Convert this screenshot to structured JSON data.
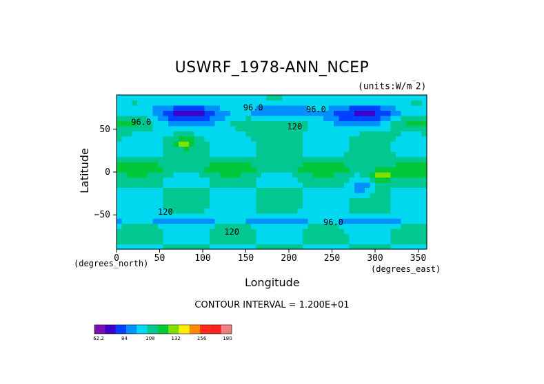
{
  "chart_data": {
    "type": "heatmap",
    "title": "USWRF_1978-ANN_NCEP",
    "units": "(units:W/m",
    "units_exp": "2)",
    "xlabel": "Longitude",
    "ylabel": "Latitude",
    "xunits": "(degrees_east)",
    "yunits": "(degrees_north)",
    "xlim": [
      0,
      360
    ],
    "ylim": [
      -90,
      90
    ],
    "xticks": [
      0,
      50,
      100,
      150,
      200,
      250,
      300,
      350
    ],
    "yticks": [
      -50,
      0,
      50
    ],
    "xtick_labels": [
      "0",
      "50",
      "100",
      "150",
      "200",
      "250",
      "300",
      "350"
    ],
    "ytick_labels": [
      "−50",
      "0",
      "50"
    ],
    "contour_interval_text": "CONTOUR INTERVAL = 1.200E+01",
    "contour_labels": [
      {
        "text": "96.0",
        "x": 147,
        "y": 72
      },
      {
        "text": "96.0",
        "x": 220,
        "y": 70
      },
      {
        "text": "120",
        "x": 198,
        "y": 50
      },
      {
        "text": "120",
        "x": 48,
        "y": -50
      },
      {
        "text": "96.0",
        "x": 240,
        "y": -62
      },
      {
        "text": "120",
        "x": 125,
        "y": -73
      },
      {
        "text": "96.0",
        "x": 17,
        "y": 55
      }
    ],
    "colorbar": {
      "colors": [
        "#7a0fb0",
        "#3a00c8",
        "#0040ff",
        "#0090ff",
        "#00d8f0",
        "#00c890",
        "#00c838",
        "#80e000",
        "#ffee00",
        "#ff8c00",
        "#ff2a1a",
        "#ff2020",
        "#f08080"
      ],
      "tick_labels": [
        "62.2",
        "84",
        "108",
        "132",
        "156",
        "180"
      ]
    },
    "grid": false
  }
}
